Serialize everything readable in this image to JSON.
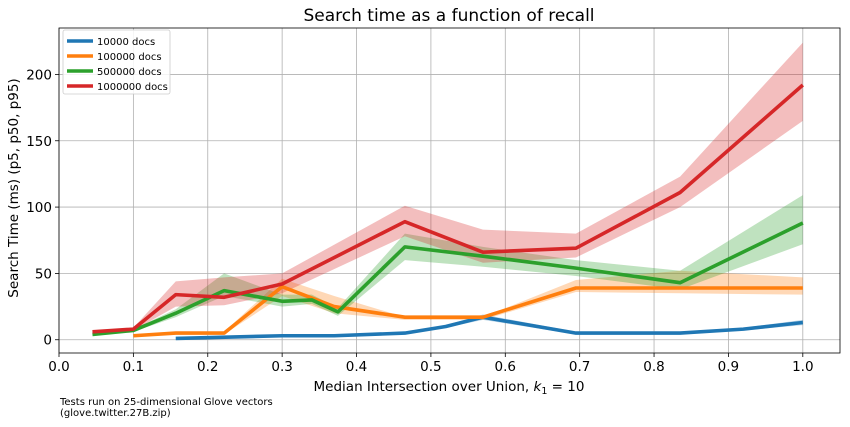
{
  "chart_data": {
    "type": "line",
    "title": "Search time as a function of recall",
    "xlabel": "Median Intersection over Union, ",
    "xlabel_math_main": "k",
    "xlabel_math_sub": "1",
    "xlabel_math_rest": " = 10",
    "ylabel": "Search Time (ms) (p5, p50, p95)",
    "xlim": [
      0.0,
      1.05
    ],
    "ylim": [
      -10,
      235
    ],
    "x_ticks": [
      0.0,
      0.1,
      0.2,
      0.3,
      0.4,
      0.5,
      0.6,
      0.7,
      0.8,
      0.9,
      1.0
    ],
    "x_tick_labels": [
      "0.0",
      "0.1",
      "0.2",
      "0.3",
      "0.4",
      "0.5",
      "0.6",
      "0.7",
      "0.8",
      "0.9",
      "1.0"
    ],
    "y_ticks": [
      0,
      50,
      100,
      150,
      200
    ],
    "y_tick_labels": [
      "0",
      "50",
      "100",
      "150",
      "200"
    ],
    "grid": true,
    "legend_position": "top-left",
    "series": [
      {
        "name": "10000 docs",
        "color": "#1f77b4",
        "x": [
          0.157,
          0.3,
          0.37,
          0.465,
          0.52,
          0.57,
          0.695,
          0.835,
          0.92,
          1.0
        ],
        "p50": [
          1,
          3,
          3,
          5,
          10,
          17,
          5,
          5,
          8,
          13
        ],
        "p5": [
          0,
          2,
          2,
          4,
          9,
          15,
          4,
          4,
          7,
          11
        ],
        "p95": [
          2,
          4,
          4,
          6,
          11,
          19,
          6,
          6,
          9,
          15
        ]
      },
      {
        "name": "100000 docs",
        "color": "#ff7f0e",
        "x": [
          0.1,
          0.157,
          0.222,
          0.3,
          0.37,
          0.465,
          0.57,
          0.695,
          0.835,
          1.0
        ],
        "p50": [
          3,
          5,
          5,
          40,
          25,
          17,
          17,
          39,
          39,
          39
        ],
        "p5": [
          2,
          4,
          4,
          33,
          20,
          15,
          15,
          36,
          35,
          34
        ],
        "p95": [
          4,
          6,
          6,
          46,
          33,
          17,
          17,
          45,
          52,
          47
        ]
      },
      {
        "name": "500000 docs",
        "color": "#2ca02c",
        "x": [
          0.045,
          0.1,
          0.157,
          0.222,
          0.3,
          0.34,
          0.375,
          0.465,
          0.57,
          0.695,
          0.835,
          1.0
        ],
        "p50": [
          4,
          7,
          20,
          37,
          29,
          30,
          21,
          70,
          63,
          54,
          43,
          88
        ],
        "p5": [
          3,
          6,
          17,
          33,
          25,
          27,
          18,
          60,
          55,
          48,
          38,
          72
        ],
        "p95": [
          5,
          8,
          23,
          50,
          34,
          34,
          24,
          80,
          70,
          60,
          52,
          109
        ]
      },
      {
        "name": "1000000 docs",
        "color": "#d62728",
        "x": [
          0.045,
          0.1,
          0.157,
          0.222,
          0.3,
          0.465,
          0.57,
          0.695,
          0.835,
          1.0
        ],
        "p50": [
          6,
          8,
          34,
          32,
          42,
          89,
          66,
          69,
          111,
          192
        ],
        "p5": [
          5,
          7,
          25,
          26,
          35,
          78,
          58,
          62,
          100,
          165
        ],
        "p95": [
          7,
          9,
          44,
          47,
          50,
          101,
          83,
          80,
          123,
          224
        ]
      }
    ]
  },
  "caption": {
    "line1": "Tests run on 25-dimensional Glove vectors",
    "line2": "(glove.twitter.27B.zip)"
  }
}
